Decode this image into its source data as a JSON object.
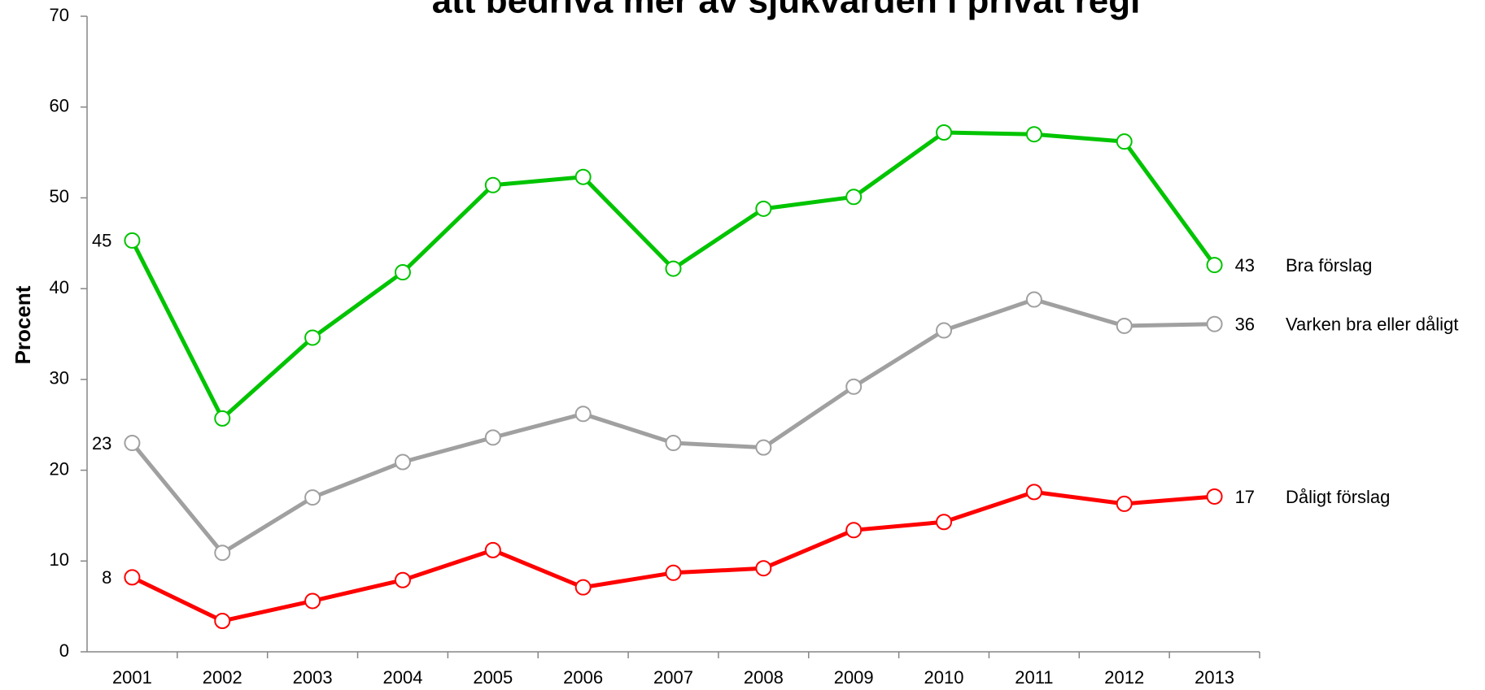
{
  "chart_data": {
    "type": "line",
    "title": "att bedriva mer av sjukvården i privat regi",
    "y_label": "Procent",
    "categories": [
      "2001",
      "2002",
      "2003",
      "2004",
      "2005",
      "2006",
      "2007",
      "2008",
      "2009",
      "2010",
      "2011",
      "2012",
      "2013"
    ],
    "ylim": [
      0,
      70
    ],
    "yticks": [
      0,
      10,
      20,
      30,
      40,
      50,
      60,
      70
    ],
    "grid": false,
    "series": [
      {
        "name": "Bra förslag",
        "color": "#00c400",
        "values": [
          45.3,
          25.7,
          34.6,
          41.8,
          51.4,
          52.3,
          42.2,
          48.8,
          50.1,
          57.2,
          57.0,
          56.2,
          42.6
        ],
        "value_labels": [
          "45",
          null,
          null,
          null,
          null,
          null,
          null,
          null,
          null,
          null,
          null,
          null,
          "43"
        ]
      },
      {
        "name": "Varken bra eller dåligt",
        "color": "#a0a0a0",
        "values": [
          23.0,
          10.9,
          17.0,
          20.9,
          23.6,
          26.2,
          23.0,
          22.5,
          29.2,
          35.4,
          38.8,
          35.9,
          36.1
        ],
        "value_labels": [
          "23",
          null,
          null,
          null,
          null,
          null,
          null,
          null,
          null,
          null,
          null,
          null,
          "36"
        ]
      },
      {
        "name": "Dåligt förslag",
        "color": "#ff0000",
        "values": [
          8.2,
          3.4,
          5.6,
          7.9,
          11.2,
          7.1,
          8.7,
          9.2,
          13.4,
          14.3,
          17.6,
          16.3,
          17.1
        ],
        "value_labels": [
          "8",
          null,
          null,
          null,
          null,
          null,
          null,
          null,
          null,
          null,
          null,
          null,
          "17"
        ]
      }
    ]
  }
}
